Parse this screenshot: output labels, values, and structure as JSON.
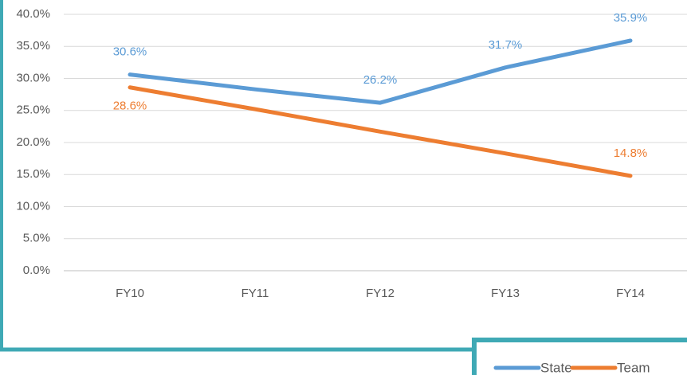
{
  "chart_data": {
    "type": "line",
    "categories": [
      "FY10",
      "FY11",
      "FY12",
      "FY13",
      "FY14"
    ],
    "series": [
      {
        "name": "State",
        "color": "#5b9bd5",
        "values": [
          30.6,
          28.3,
          26.2,
          31.7,
          35.9
        ],
        "value_labels": [
          "30.6%",
          null,
          "26.2%",
          "31.7%",
          "35.9%"
        ]
      },
      {
        "name": "Team",
        "color": "#ed7d31",
        "values": [
          28.6,
          25.2,
          21.7,
          18.3,
          14.8
        ],
        "value_labels": [
          "28.6%",
          null,
          null,
          null,
          "14.8%"
        ]
      }
    ],
    "ylim": [
      0,
      40
    ],
    "yticks": [
      {
        "value": 0,
        "label": "0.0%"
      },
      {
        "value": 5,
        "label": "5.0%"
      },
      {
        "value": 10,
        "label": "10.0%"
      },
      {
        "value": 15,
        "label": "15.0%"
      },
      {
        "value": 20,
        "label": "20.0%"
      },
      {
        "value": 25,
        "label": "25.0%"
      },
      {
        "value": 30,
        "label": "30.0%"
      },
      {
        "value": 35,
        "label": "35.0%"
      },
      {
        "value": 40,
        "label": "40.0%"
      }
    ],
    "grid": true,
    "legend": "bottom-right"
  }
}
